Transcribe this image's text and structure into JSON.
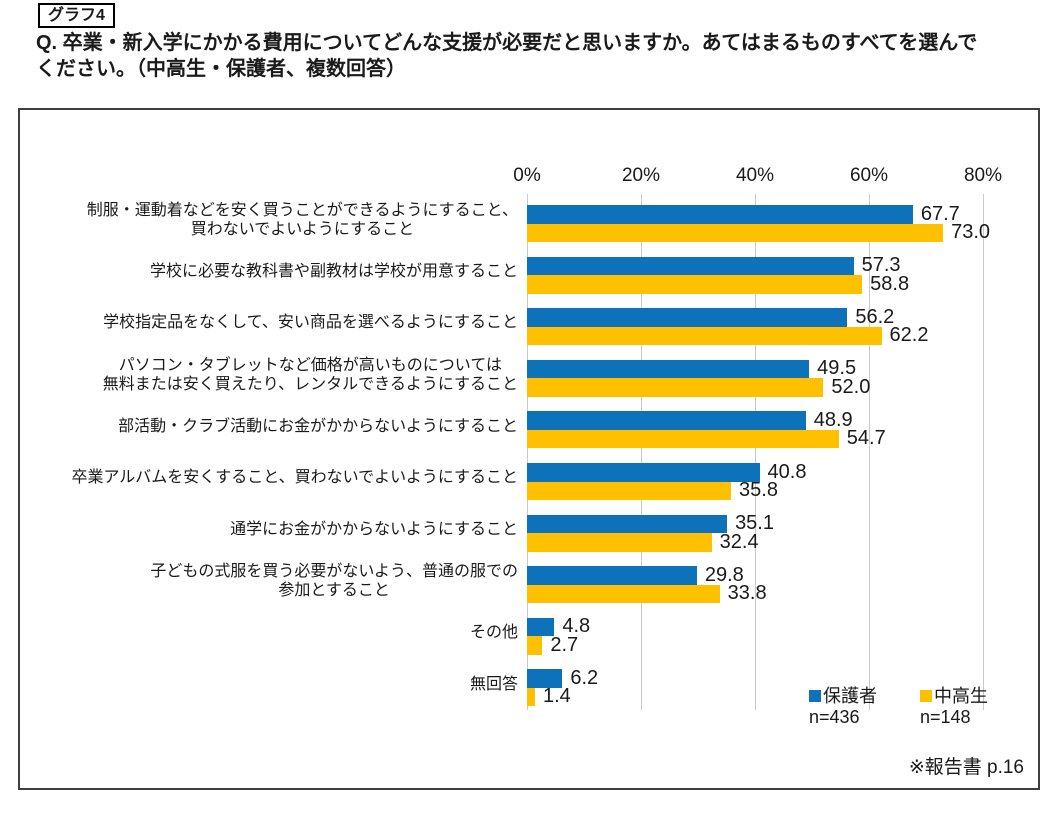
{
  "header": {
    "tag": "グラフ4",
    "question": "Q. 卒業・新入学にかかる費用についてどんな支援が必要だと思いますか。あてはまるものすべてを選んで\nください。（中高生・保護者、複数回答）"
  },
  "chart_data": {
    "type": "bar",
    "orientation": "horizontal",
    "title": "",
    "xlabel": "",
    "ylabel": "",
    "xlim": [
      0,
      80
    ],
    "x_ticks": [
      "0%",
      "20%",
      "40%",
      "60%",
      "80%"
    ],
    "grid": true,
    "legend_position": "bottom-right",
    "value_label_format": "one-decimal",
    "categories": [
      "制服・運動着などを安く買うことができるようにすること、\n買わないでよいようにすること",
      "学校に必要な教科書や副教材は学校が用意すること",
      "学校指定品をなくして、安い商品を選べるようにすること",
      "パソコン・タブレットなど価格が高いものについては\n無料または安く買えたり、レンタルできるようにすること",
      "部活動・クラブ活動にお金がかからないようにすること",
      "卒業アルバムを安くすること、買わないでよいようにすること",
      "通学にお金がかからないようにすること",
      "子どもの式服を買う必要がないよう、普通の服での\n参加とすること",
      "その他",
      "無回答"
    ],
    "series": [
      {
        "name": "保護者",
        "n_label": "n=436",
        "color": "#0d72ba",
        "values": [
          67.7,
          57.3,
          56.2,
          49.5,
          48.9,
          40.8,
          35.1,
          29.8,
          4.8,
          6.2
        ]
      },
      {
        "name": "中高生",
        "n_label": "n=148",
        "color": "#ffc000",
        "values": [
          73.0,
          58.8,
          62.2,
          52.0,
          54.7,
          35.8,
          32.4,
          33.8,
          2.7,
          1.4
        ]
      }
    ]
  },
  "note": "※報告書 p.16",
  "colors": {
    "grid": "#c9c9c9",
    "frame_border": "#3f3f3f",
    "text": "#1a1a1a"
  }
}
